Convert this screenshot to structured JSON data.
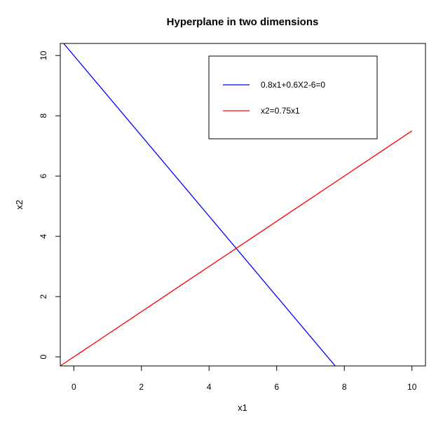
{
  "chart_data": {
    "type": "line",
    "title": "Hyperplane in two dimensions",
    "xlabel": "x1",
    "ylabel": "x2",
    "xlim": [
      -0.4,
      10.4
    ],
    "ylim": [
      -0.3,
      10.4
    ],
    "x_ticks": [
      0,
      2,
      4,
      6,
      8,
      10
    ],
    "y_ticks": [
      0,
      2,
      4,
      6,
      8,
      10
    ],
    "grid": false,
    "legend_position": "top-right",
    "series": [
      {
        "name": "0.8x1+0.6X2-6=0",
        "color": "#0000ff",
        "x": [
          -0.3,
          7.73
        ],
        "y": [
          10.4,
          -0.3
        ]
      },
      {
        "name": "x2=0.75x1",
        "color": "#ff0000",
        "x": [
          -0.4,
          10
        ],
        "y": [
          -0.3,
          7.5
        ]
      }
    ]
  }
}
